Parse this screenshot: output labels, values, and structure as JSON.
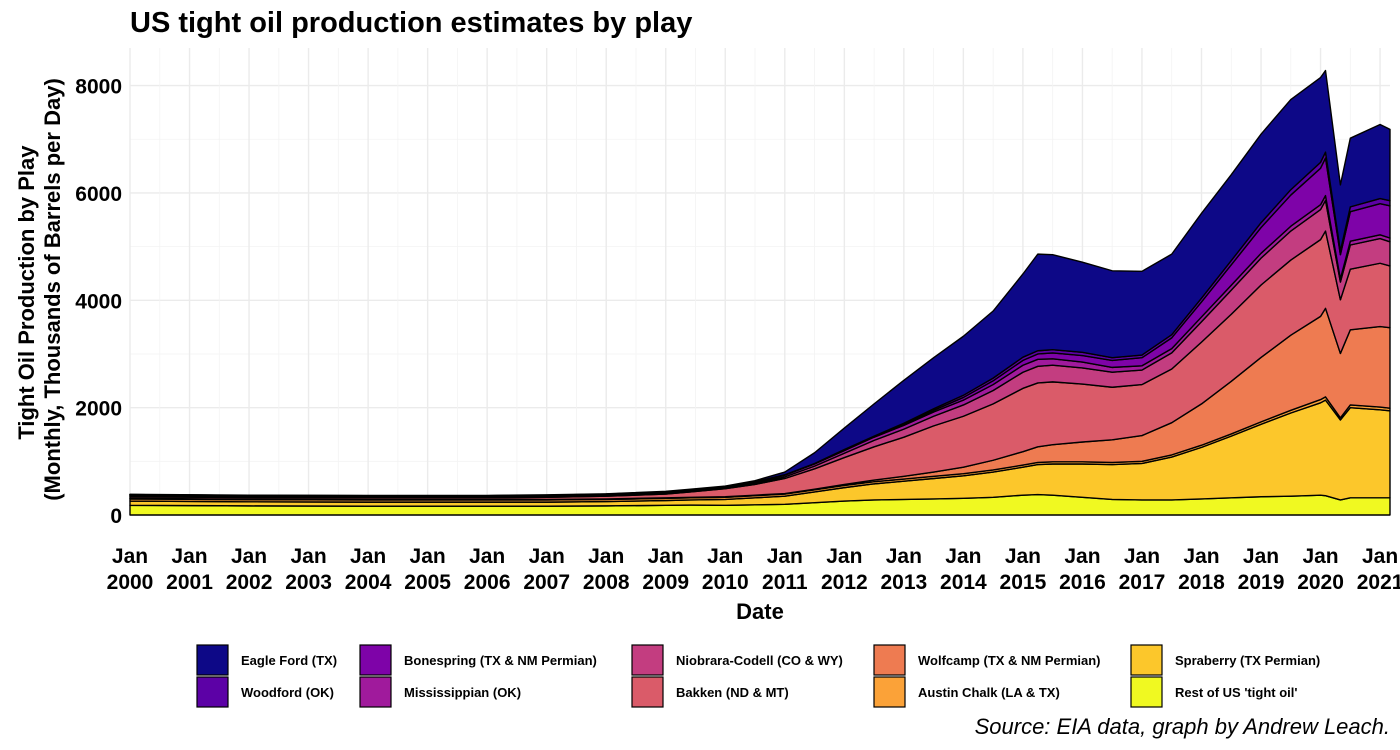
{
  "chart_data": {
    "type": "area",
    "stacked": true,
    "title": "US tight oil production estimates by play",
    "xlabel": "Date",
    "ylabel": "Tight Oil Production by Play\n(Monthly, Thousands of Barrels per Day)",
    "caption": "Source: EIA data, graph by Andrew Leach.",
    "ylim": [
      0,
      8700
    ],
    "y_ticks": [
      0,
      2000,
      4000,
      6000,
      8000
    ],
    "y_tick_labels": [
      "0",
      "2000",
      "4000",
      "6000",
      "8000"
    ],
    "x_range": [
      "2000-01",
      "2021-03"
    ],
    "x_ticks": [
      "2000-01",
      "2001-01",
      "2002-01",
      "2003-01",
      "2004-01",
      "2005-01",
      "2006-01",
      "2007-01",
      "2008-01",
      "2009-01",
      "2010-01",
      "2011-01",
      "2012-01",
      "2013-01",
      "2014-01",
      "2015-01",
      "2016-01",
      "2017-01",
      "2018-01",
      "2019-01",
      "2020-01",
      "2021-01"
    ],
    "x_tick_labels": [
      [
        "Jan",
        "2000"
      ],
      [
        "Jan",
        "2001"
      ],
      [
        "Jan",
        "2002"
      ],
      [
        "Jan",
        "2003"
      ],
      [
        "Jan",
        "2004"
      ],
      [
        "Jan",
        "2005"
      ],
      [
        "Jan",
        "2006"
      ],
      [
        "Jan",
        "2007"
      ],
      [
        "Jan",
        "2008"
      ],
      [
        "Jan",
        "2009"
      ],
      [
        "Jan",
        "2010"
      ],
      [
        "Jan",
        "2011"
      ],
      [
        "Jan",
        "2012"
      ],
      [
        "Jan",
        "2013"
      ],
      [
        "Jan",
        "2014"
      ],
      [
        "Jan",
        "2015"
      ],
      [
        "Jan",
        "2016"
      ],
      [
        "Jan",
        "2017"
      ],
      [
        "Jan",
        "2018"
      ],
      [
        "Jan",
        "2019"
      ],
      [
        "Jan",
        "2020"
      ],
      [
        "Jan",
        "2021"
      ]
    ],
    "grid": true,
    "legend_position": "bottom",
    "x": [
      "2000-01",
      "2002-01",
      "2004-01",
      "2006-01",
      "2007-01",
      "2008-01",
      "2009-01",
      "2009-06",
      "2010-01",
      "2010-07",
      "2011-01",
      "2011-07",
      "2012-01",
      "2012-07",
      "2013-01",
      "2013-07",
      "2014-01",
      "2014-07",
      "2015-01",
      "2015-04",
      "2015-07",
      "2016-01",
      "2016-07",
      "2017-01",
      "2017-07",
      "2018-01",
      "2018-07",
      "2019-01",
      "2019-07",
      "2020-01",
      "2020-02",
      "2020-05",
      "2020-07",
      "2021-01",
      "2021-03"
    ],
    "series": [
      {
        "name": "Rest of US 'tight oil'",
        "color": "#f0f921",
        "values": [
          180,
          170,
          165,
          165,
          165,
          170,
          180,
          185,
          180,
          190,
          200,
          230,
          260,
          280,
          290,
          300,
          310,
          330,
          370,
          380,
          370,
          330,
          290,
          280,
          280,
          300,
          320,
          340,
          350,
          370,
          360,
          280,
          320,
          320,
          320
        ]
      },
      {
        "name": "Spraberry (TX Permian)",
        "color": "#fcc72b",
        "values": [
          80,
          75,
          75,
          75,
          75,
          80,
          90,
          95,
          110,
          130,
          150,
          200,
          250,
          300,
          340,
          380,
          420,
          470,
          520,
          560,
          580,
          620,
          650,
          680,
          800,
          960,
          1150,
          1350,
          1550,
          1720,
          1780,
          1490,
          1680,
          1640,
          1620
        ]
      },
      {
        "name": "Austin Chalk (LA & TX)",
        "color": "#fba238",
        "values": [
          40,
          40,
          40,
          40,
          40,
          40,
          40,
          40,
          40,
          40,
          40,
          40,
          40,
          40,
          40,
          40,
          40,
          40,
          40,
          40,
          40,
          40,
          40,
          40,
          40,
          40,
          40,
          45,
          50,
          60,
          60,
          40,
          50,
          50,
          50
        ]
      },
      {
        "name": "Wolfcamp (TX & NM Permian)",
        "color": "#ee7b51",
        "values": [
          10,
          10,
          10,
          10,
          10,
          10,
          10,
          10,
          10,
          10,
          10,
          10,
          20,
          30,
          50,
          80,
          120,
          180,
          250,
          290,
          320,
          370,
          420,
          480,
          600,
          770,
          980,
          1200,
          1400,
          1550,
          1650,
          1200,
          1400,
          1500,
          1500
        ]
      },
      {
        "name": "Bakken (ND & MT)",
        "color": "#da5b69",
        "values": [
          30,
          30,
          30,
          30,
          40,
          50,
          70,
          100,
          150,
          200,
          280,
          380,
          500,
          620,
          730,
          860,
          950,
          1050,
          1180,
          1190,
          1170,
          1080,
          980,
          950,
          1000,
          1150,
          1250,
          1350,
          1400,
          1430,
          1440,
          1000,
          1130,
          1180,
          1150
        ]
      },
      {
        "name": "Niobrara-Codell (CO & WY)",
        "color": "#c33d80",
        "values": [
          20,
          20,
          20,
          20,
          20,
          20,
          20,
          20,
          20,
          20,
          30,
          50,
          80,
          120,
          150,
          180,
          210,
          250,
          300,
          310,
          310,
          300,
          280,
          270,
          300,
          380,
          450,
          500,
          540,
          560,
          570,
          330,
          450,
          460,
          450
        ]
      },
      {
        "name": "Mississippian (OK)",
        "color": "#a01a9c",
        "values": [
          10,
          10,
          10,
          10,
          10,
          10,
          10,
          10,
          10,
          20,
          30,
          40,
          50,
          60,
          70,
          80,
          90,
          110,
          130,
          130,
          120,
          110,
          90,
          80,
          80,
          90,
          90,
          90,
          90,
          90,
          90,
          60,
          70,
          70,
          70
        ]
      },
      {
        "name": "Bonespring (TX & NM Permian)",
        "color": "#7e03a8",
        "values": [
          10,
          10,
          10,
          10,
          10,
          10,
          10,
          10,
          10,
          10,
          10,
          10,
          10,
          10,
          20,
          30,
          50,
          70,
          90,
          100,
          110,
          120,
          130,
          150,
          200,
          280,
          380,
          480,
          580,
          680,
          700,
          450,
          550,
          580,
          600
        ]
      },
      {
        "name": "Woodford (OK)",
        "color": "#5c01a6",
        "values": [
          0,
          0,
          0,
          0,
          0,
          0,
          0,
          0,
          0,
          0,
          0,
          0,
          10,
          10,
          20,
          30,
          40,
          50,
          60,
          60,
          60,
          60,
          50,
          50,
          60,
          70,
          80,
          90,
          100,
          110,
          110,
          70,
          90,
          95,
          95
        ]
      },
      {
        "name": "Eagle Ford (TX)",
        "color": "#0d0887",
        "values": [
          5,
          5,
          5,
          5,
          5,
          5,
          10,
          10,
          10,
          20,
          50,
          200,
          400,
          600,
          800,
          950,
          1100,
          1250,
          1550,
          1800,
          1770,
          1680,
          1620,
          1560,
          1500,
          1580,
          1600,
          1650,
          1680,
          1580,
          1520,
          1230,
          1280,
          1380,
          1330
        ]
      }
    ]
  },
  "legend": {
    "items": [
      {
        "label": "Eagle Ford (TX)",
        "color": "#0d0887"
      },
      {
        "label": "Woodford (OK)",
        "color": "#5c01a6"
      },
      {
        "label": "Bonespring (TX & NM Permian)",
        "color": "#7e03a8"
      },
      {
        "label": "Mississippian (OK)",
        "color": "#a01a9c"
      },
      {
        "label": "Niobrara-Codell (CO & WY)",
        "color": "#c33d80"
      },
      {
        "label": "Bakken (ND & MT)",
        "color": "#da5b69"
      },
      {
        "label": "Wolfcamp (TX & NM Permian)",
        "color": "#ee7b51"
      },
      {
        "label": "Austin Chalk (LA & TX)",
        "color": "#fba238"
      },
      {
        "label": "Spraberry (TX Permian)",
        "color": "#fcc72b"
      },
      {
        "label": "Rest of US 'tight oil'",
        "color": "#f0f921"
      }
    ]
  }
}
